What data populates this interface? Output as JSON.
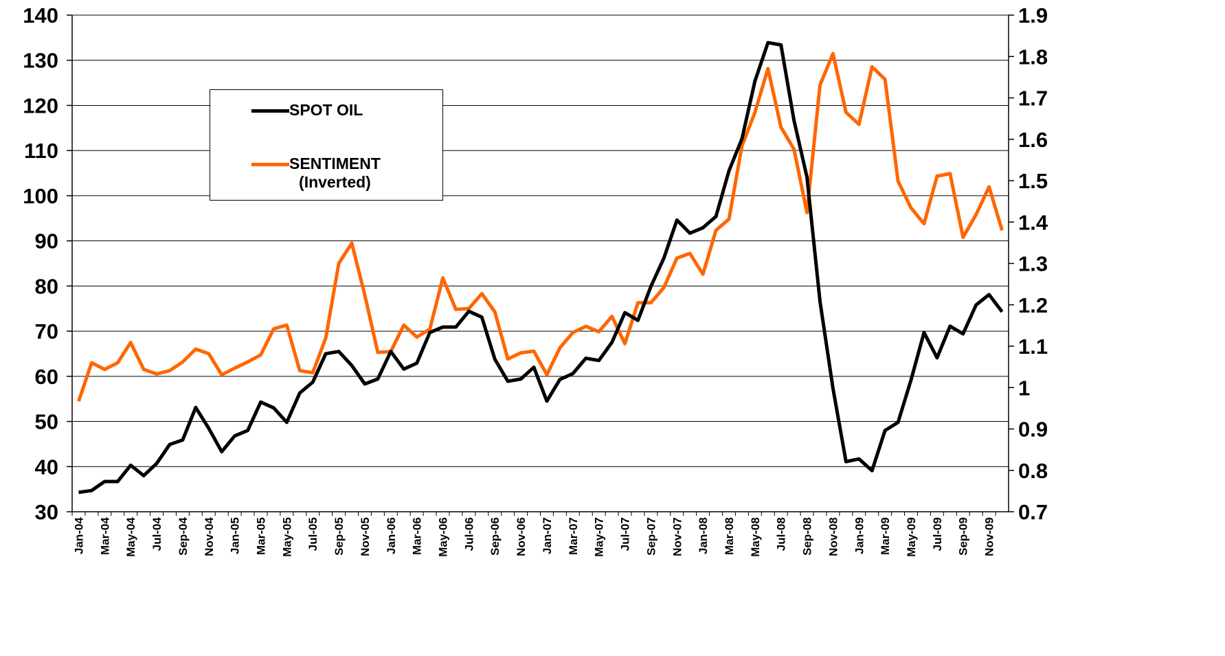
{
  "chart_data": {
    "type": "line",
    "categories": [
      "Jan-04",
      null,
      "Mar-04",
      null,
      "May-04",
      null,
      "Jul-04",
      null,
      "Sep-04",
      null,
      "Nov-04",
      null,
      "Jan-05",
      null,
      "Mar-05",
      null,
      "May-05",
      null,
      "Jul-05",
      null,
      "Sep-05",
      null,
      "Nov-05",
      null,
      "Jan-06",
      null,
      "Mar-06",
      null,
      "May-06",
      null,
      "Jul-06",
      null,
      "Sep-06",
      null,
      "Nov-06",
      null,
      "Jan-07",
      null,
      "Mar-07",
      null,
      "May-07",
      null,
      "Jul-07",
      null,
      "Sep-07",
      null,
      "Nov-07",
      null,
      "Jan-08",
      null,
      "Mar-08",
      null,
      "May-08",
      null,
      "Jul-08",
      null,
      "Sep-08",
      null,
      "Nov-08",
      null,
      "Jan-09",
      null,
      "Mar-09",
      null,
      "May-09",
      null,
      "Jul-09",
      null,
      "Sep-09",
      null,
      "Nov-09",
      null
    ],
    "series": [
      {
        "name": "SPOT OIL",
        "color": "#000000",
        "axis": "y",
        "values": [
          34.3,
          34.7,
          36.7,
          36.7,
          40.3,
          38.0,
          40.7,
          44.9,
          45.9,
          53.1,
          48.5,
          43.3,
          46.8,
          48.0,
          54.3,
          53.0,
          49.8,
          56.3,
          58.7,
          65.0,
          65.5,
          62.4,
          58.3,
          59.4,
          65.5,
          61.6,
          62.9,
          69.7,
          70.9,
          70.9,
          74.4,
          73.1,
          63.8,
          58.9,
          59.4,
          62.0,
          54.5,
          59.3,
          60.6,
          64.0,
          63.5,
          67.5,
          74.1,
          72.4,
          79.9,
          86.2,
          94.6,
          91.7,
          92.9,
          95.4,
          105.5,
          112.6,
          125.4,
          133.9,
          133.4,
          116.7,
          104.1,
          76.6,
          57.3,
          41.1,
          41.7,
          39.1,
          48.0,
          49.8,
          59.2,
          69.7,
          64.1,
          71.1,
          69.4,
          75.8,
          78.1,
          74.3
        ]
      },
      {
        "name": "SENTIMENT\n(Inverted)",
        "color": "#ff6600",
        "axis": "y2",
        "values": [
          0.967,
          1.06,
          1.044,
          1.06,
          1.109,
          1.044,
          1.033,
          1.041,
          1.062,
          1.093,
          1.082,
          1.031,
          1.047,
          1.062,
          1.079,
          1.142,
          1.151,
          1.041,
          1.036,
          1.12,
          1.3,
          1.349,
          1.224,
          1.085,
          1.087,
          1.151,
          1.122,
          1.141,
          1.265,
          1.189,
          1.191,
          1.227,
          1.183,
          1.069,
          1.084,
          1.088,
          1.031,
          1.096,
          1.133,
          1.148,
          1.135,
          1.172,
          1.106,
          1.205,
          1.205,
          1.242,
          1.313,
          1.324,
          1.274,
          1.38,
          1.407,
          1.584,
          1.665,
          1.771,
          1.629,
          1.576,
          1.423,
          1.731,
          1.807,
          1.665,
          1.636,
          1.775,
          1.745,
          1.499,
          1.434,
          1.396,
          1.511,
          1.517,
          1.363,
          1.418,
          1.485,
          1.38
        ]
      }
    ],
    "ylim": [
      30,
      140
    ],
    "yticks": [
      30,
      40,
      50,
      60,
      70,
      80,
      90,
      100,
      110,
      120,
      130,
      140
    ],
    "y2lim": [
      0.7,
      1.9
    ],
    "y2ticks": [
      0.7,
      0.8,
      0.9,
      1,
      1.1,
      1.2,
      1.3,
      1.4,
      1.5,
      1.6,
      1.7,
      1.8,
      1.9
    ],
    "grid": true
  }
}
